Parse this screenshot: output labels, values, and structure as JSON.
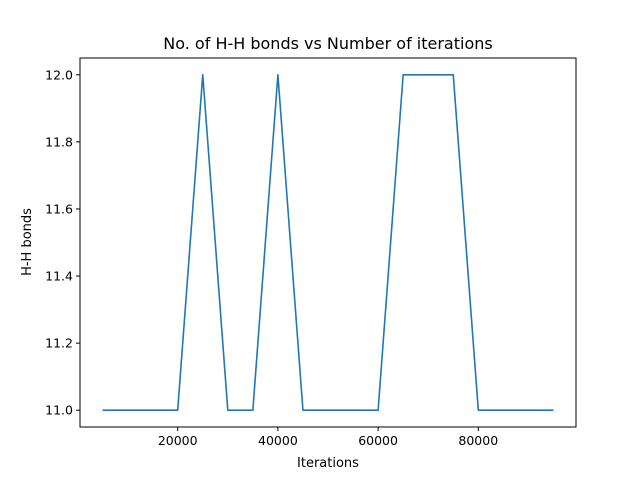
{
  "chart_data": {
    "type": "line",
    "title": "No. of H-H bonds vs Number of iterations",
    "xlabel": "Iterations",
    "ylabel": "H-H bonds",
    "xlim": [
      500,
      99500
    ],
    "ylim": [
      10.95,
      12.05
    ],
    "xticks": [
      20000,
      40000,
      60000,
      80000
    ],
    "xtick_labels": [
      "20000",
      "40000",
      "60000",
      "80000"
    ],
    "yticks": [
      11.0,
      11.2,
      11.4,
      11.6,
      11.8,
      12.0
    ],
    "ytick_labels": [
      "11.0",
      "11.2",
      "11.4",
      "11.6",
      "11.8",
      "12.0"
    ],
    "grid": false,
    "series": [
      {
        "color": "#1f77b4",
        "x": [
          5000,
          10000,
          15000,
          20000,
          25000,
          30000,
          35000,
          40000,
          45000,
          50000,
          55000,
          60000,
          65000,
          70000,
          75000,
          80000,
          85000,
          90000,
          95000
        ],
        "y": [
          11,
          11,
          11,
          11,
          12,
          11,
          11,
          12,
          11,
          11,
          11,
          11,
          12,
          12,
          12,
          11,
          11,
          11,
          11
        ]
      }
    ]
  }
}
